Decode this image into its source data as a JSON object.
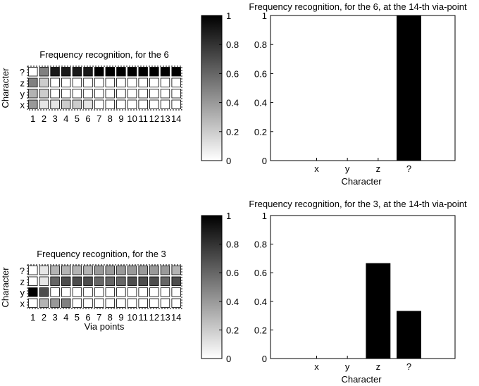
{
  "chart_data": [
    {
      "type": "heatmap",
      "title": "Frequency recognition, for the 6",
      "xlabel": "",
      "ylabel": "Character",
      "x_ticks": [
        "1",
        "2",
        "3",
        "4",
        "5",
        "6",
        "7",
        "8",
        "9",
        "10",
        "11",
        "12",
        "13",
        "14"
      ],
      "y_ticks": [
        "?",
        "z",
        "y",
        "x"
      ],
      "value_range": [
        0,
        1
      ],
      "values": [
        [
          0.0,
          0.5,
          0.9,
          0.9,
          0.9,
          0.9,
          1.0,
          1.0,
          1.0,
          1.0,
          1.0,
          1.0,
          1.0,
          1.0
        ],
        [
          0.5,
          0.2,
          0.0,
          0.0,
          0.0,
          0.0,
          0.0,
          0.0,
          0.0,
          0.0,
          0.0,
          0.0,
          0.0,
          0.0
        ],
        [
          0.3,
          0.2,
          0.0,
          0.0,
          0.0,
          0.0,
          0.0,
          0.0,
          0.0,
          0.0,
          0.0,
          0.0,
          0.0,
          0.0
        ],
        [
          0.4,
          0.1,
          0.1,
          0.2,
          0.2,
          0.1,
          0.0,
          0.0,
          0.0,
          0.0,
          0.0,
          0.0,
          0.0,
          0.0
        ]
      ]
    },
    {
      "type": "bar",
      "title": "Frequency recognition, for the 6, at the 14-th via-point",
      "xlabel": "Character",
      "ylabel": "",
      "categories": [
        "x",
        "y",
        "z",
        "?"
      ],
      "values": [
        0,
        0,
        0,
        1
      ],
      "ylim": [
        0,
        1
      ],
      "yticks": [
        "0",
        "0.2",
        "0.4",
        "0.6",
        "0.8",
        "1"
      ]
    },
    {
      "type": "heatmap",
      "title": "Frequency recognition, for the 3",
      "xlabel": "Via points",
      "ylabel": "Character",
      "x_ticks": [
        "1",
        "2",
        "3",
        "4",
        "5",
        "6",
        "7",
        "8",
        "9",
        "10",
        "11",
        "12",
        "13",
        "14"
      ],
      "y_ticks": [
        "?",
        "z",
        "y",
        "x"
      ],
      "value_range": [
        0,
        1
      ],
      "values": [
        [
          0.0,
          0.1,
          0.3,
          0.3,
          0.3,
          0.3,
          0.4,
          0.4,
          0.4,
          0.4,
          0.4,
          0.4,
          0.4,
          0.3
        ],
        [
          0.0,
          0.1,
          0.6,
          0.7,
          0.7,
          0.7,
          0.6,
          0.6,
          0.6,
          0.7,
          0.7,
          0.7,
          0.6,
          0.7
        ],
        [
          1.0,
          0.7,
          0.0,
          0.0,
          0.0,
          0.0,
          0.0,
          0.0,
          0.0,
          0.0,
          0.0,
          0.0,
          0.0,
          0.0
        ],
        [
          0.0,
          0.3,
          0.4,
          0.5,
          0.0,
          0.0,
          0.0,
          0.0,
          0.0,
          0.0,
          0.0,
          0.0,
          0.0,
          0.0
        ]
      ]
    },
    {
      "type": "bar",
      "title": "Frequency recognition, for the 3, at the 14-th via-point",
      "xlabel": "Character",
      "ylabel": "",
      "categories": [
        "x",
        "y",
        "z",
        "?"
      ],
      "values": [
        0,
        0,
        0.667,
        0.333
      ],
      "ylim": [
        0,
        1
      ],
      "yticks": [
        "0",
        "0.2",
        "0.4",
        "0.6",
        "0.8",
        "1"
      ]
    }
  ],
  "colorbar": {
    "ticks": [
      "0",
      "0.2",
      "0.4",
      "0.6",
      "0.8",
      "1"
    ],
    "range": [
      0,
      1
    ]
  },
  "colors": {
    "bar_fill": "#000000",
    "axis": "#000000",
    "low": "#ffffff",
    "high": "#000000"
  }
}
